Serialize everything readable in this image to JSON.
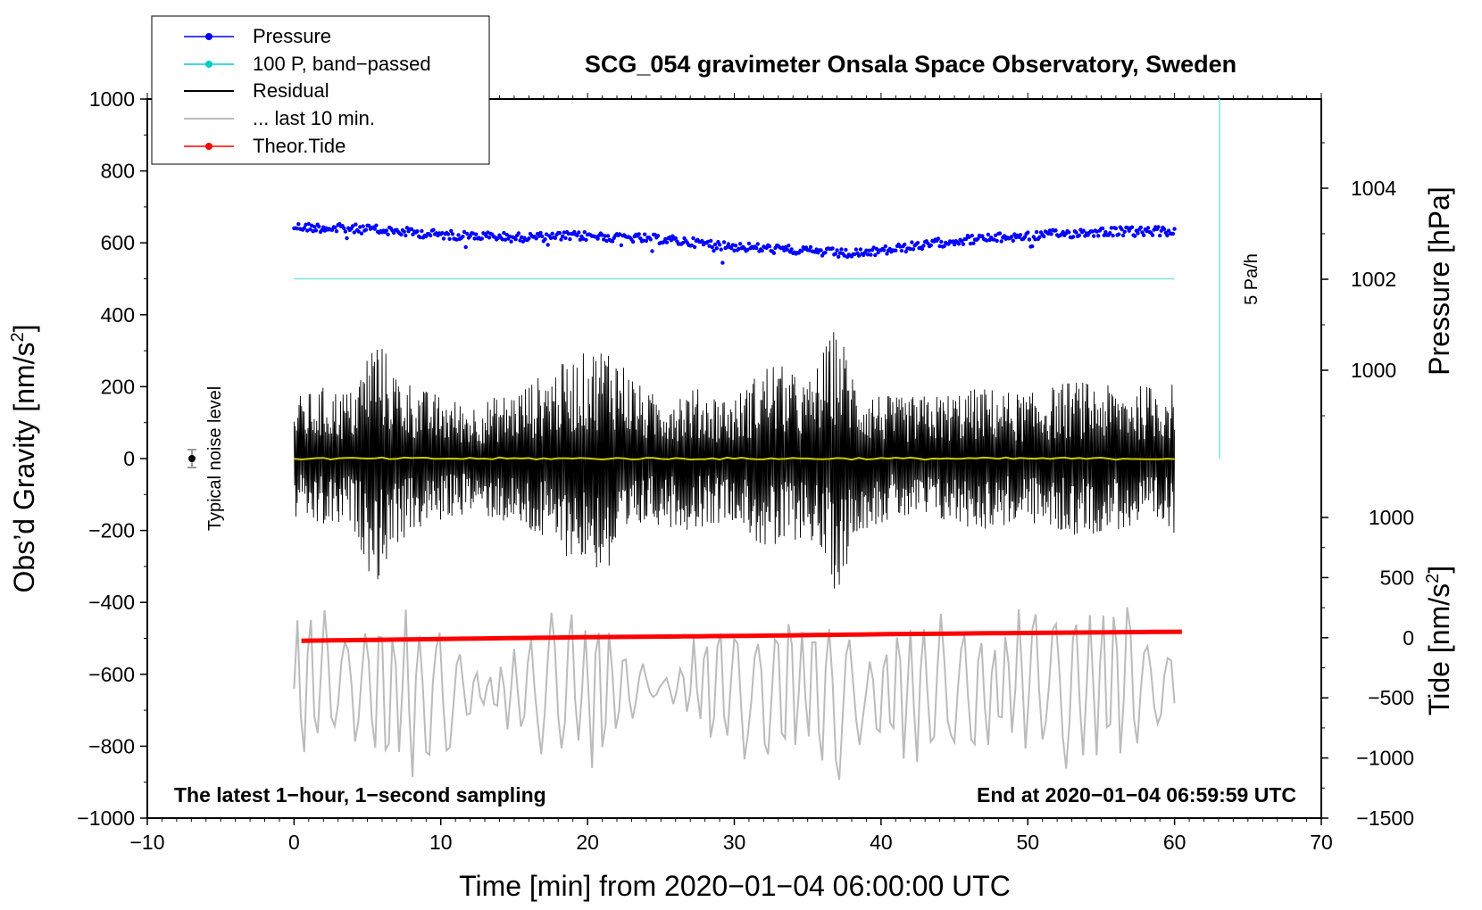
{
  "chart_data": {
    "type": "line",
    "title": "SCG_054 gravimeter Onsala Space Observatory, Sweden",
    "xlabel": "Time [min] from 2020−01−04 06:00:00 UTC",
    "ylabel_left": "Obs’d Gravity [nm/s²]",
    "ylabel_left_main": "Obs’d Gravity [nm/s",
    "ylabel_left_sup": "2",
    "ylabel_left_end": "]",
    "ylabel_right_pressure": "Pressure [hPa]",
    "ylabel_right_tide": "Tide [nm/s²]",
    "ylabel_right_tide_main": "Tide [nm/s",
    "ylabel_right_tide_sup": "2",
    "ylabel_right_tide_end": "]",
    "xlim": [
      -10,
      70
    ],
    "ylim_left": [
      -1000,
      1000
    ],
    "x_ticks": [
      "−10",
      "0",
      "10",
      "20",
      "30",
      "40",
      "50",
      "60",
      "70"
    ],
    "x_tick_values": [
      -10,
      0,
      10,
      20,
      30,
      40,
      50,
      60,
      70
    ],
    "y_left_ticks": [
      "1000",
      "800",
      "600",
      "400",
      "200",
      "0",
      "−200",
      "−400",
      "−600",
      "−800",
      "−1000"
    ],
    "y_left_tick_values": [
      1000,
      800,
      600,
      400,
      200,
      0,
      -200,
      -400,
      -600,
      -800,
      -1000
    ],
    "pressure_ticks": [
      "1004",
      "1002",
      "1000"
    ],
    "pressure_tick_values": [
      1004,
      1002,
      1000
    ],
    "tide_ticks": [
      "1000",
      "500",
      "0",
      "−500",
      "−1000",
      "−1500"
    ],
    "tide_tick_values": [
      1000,
      500,
      0,
      -500,
      -1000,
      -1500
    ],
    "legend": [
      {
        "label": "Pressure",
        "color": "#0000ff",
        "marker": "dot"
      },
      {
        "label": "100 P, band−passed",
        "color": "#00cccc",
        "marker": "dot"
      },
      {
        "label": "Residual",
        "color": "#000000",
        "marker": "line"
      },
      {
        "label": "... last 10 min.",
        "color": "#bbbbbb",
        "marker": "line"
      },
      {
        "label": "Theor.Tide",
        "color": "#ff0000",
        "marker": "dot"
      }
    ],
    "series": [
      {
        "name": "Pressure",
        "units": "hPa",
        "x": [
          0,
          5,
          10,
          15,
          20,
          25,
          30,
          35,
          38,
          40,
          45,
          50,
          55,
          60
        ],
        "values": [
          1003.15,
          1003.1,
          1002.98,
          1002.92,
          1002.95,
          1002.88,
          1002.72,
          1002.62,
          1002.55,
          1002.62,
          1002.85,
          1002.95,
          1003.05,
          1003.05
        ]
      },
      {
        "name": "100 P, band−passed",
        "units": "nm/s²",
        "x": [
          0,
          60
        ],
        "values": [
          500,
          500
        ]
      },
      {
        "name": "Residual",
        "units": "nm/s²",
        "envelope_x": [
          0,
          2,
          4,
          5.5,
          7,
          9,
          12,
          15,
          18,
          21.5,
          24,
          27,
          30,
          32.5,
          35,
          37,
          38.5,
          41,
          44,
          47,
          50,
          53,
          56,
          60
        ],
        "envelope_amp": [
          170,
          200,
          190,
          360,
          240,
          190,
          150,
          190,
          260,
          330,
          180,
          200,
          170,
          280,
          210,
          380,
          200,
          170,
          180,
          200,
          180,
          220,
          200,
          210
        ]
      },
      {
        "name": "Residual (smoothed)",
        "color": "#cccc00",
        "x": [
          0,
          60
        ],
        "values": [
          0,
          0
        ]
      },
      {
        "name": "... last 10 min.",
        "units": "nm/s²",
        "envelope_x": [
          0,
          1,
          3,
          6,
          9,
          13,
          18,
          21,
          25,
          29,
          32,
          35,
          37,
          39,
          42,
          46,
          50,
          53,
          56,
          60
        ],
        "envelope_low": [
          -830,
          -900,
          -780,
          -900,
          -960,
          -700,
          -900,
          -860,
          -650,
          -860,
          -900,
          -870,
          -940,
          -780,
          -880,
          -860,
          -830,
          -880,
          -860,
          -760
        ],
        "envelope_high": [
          -450,
          -380,
          -440,
          -370,
          -370,
          -600,
          -400,
          -420,
          -620,
          -400,
          -420,
          -360,
          -420,
          -560,
          -400,
          -460,
          -390,
          -420,
          -340,
          -520
        ]
      },
      {
        "name": "Theor.Tide",
        "units": "nm/s²",
        "x": [
          0,
          10,
          20,
          30,
          40,
          50,
          60
        ],
        "values": [
          -25,
          -10,
          5,
          15,
          30,
          40,
          50
        ]
      }
    ],
    "annotations": {
      "noise_label": "Typical noise level",
      "pressure_scale_label": "5 Pa/h",
      "sampling_label": "The latest 1−hour, 1−second sampling",
      "end_label": "End at 2020−01−04 06:59:59 UTC"
    }
  }
}
